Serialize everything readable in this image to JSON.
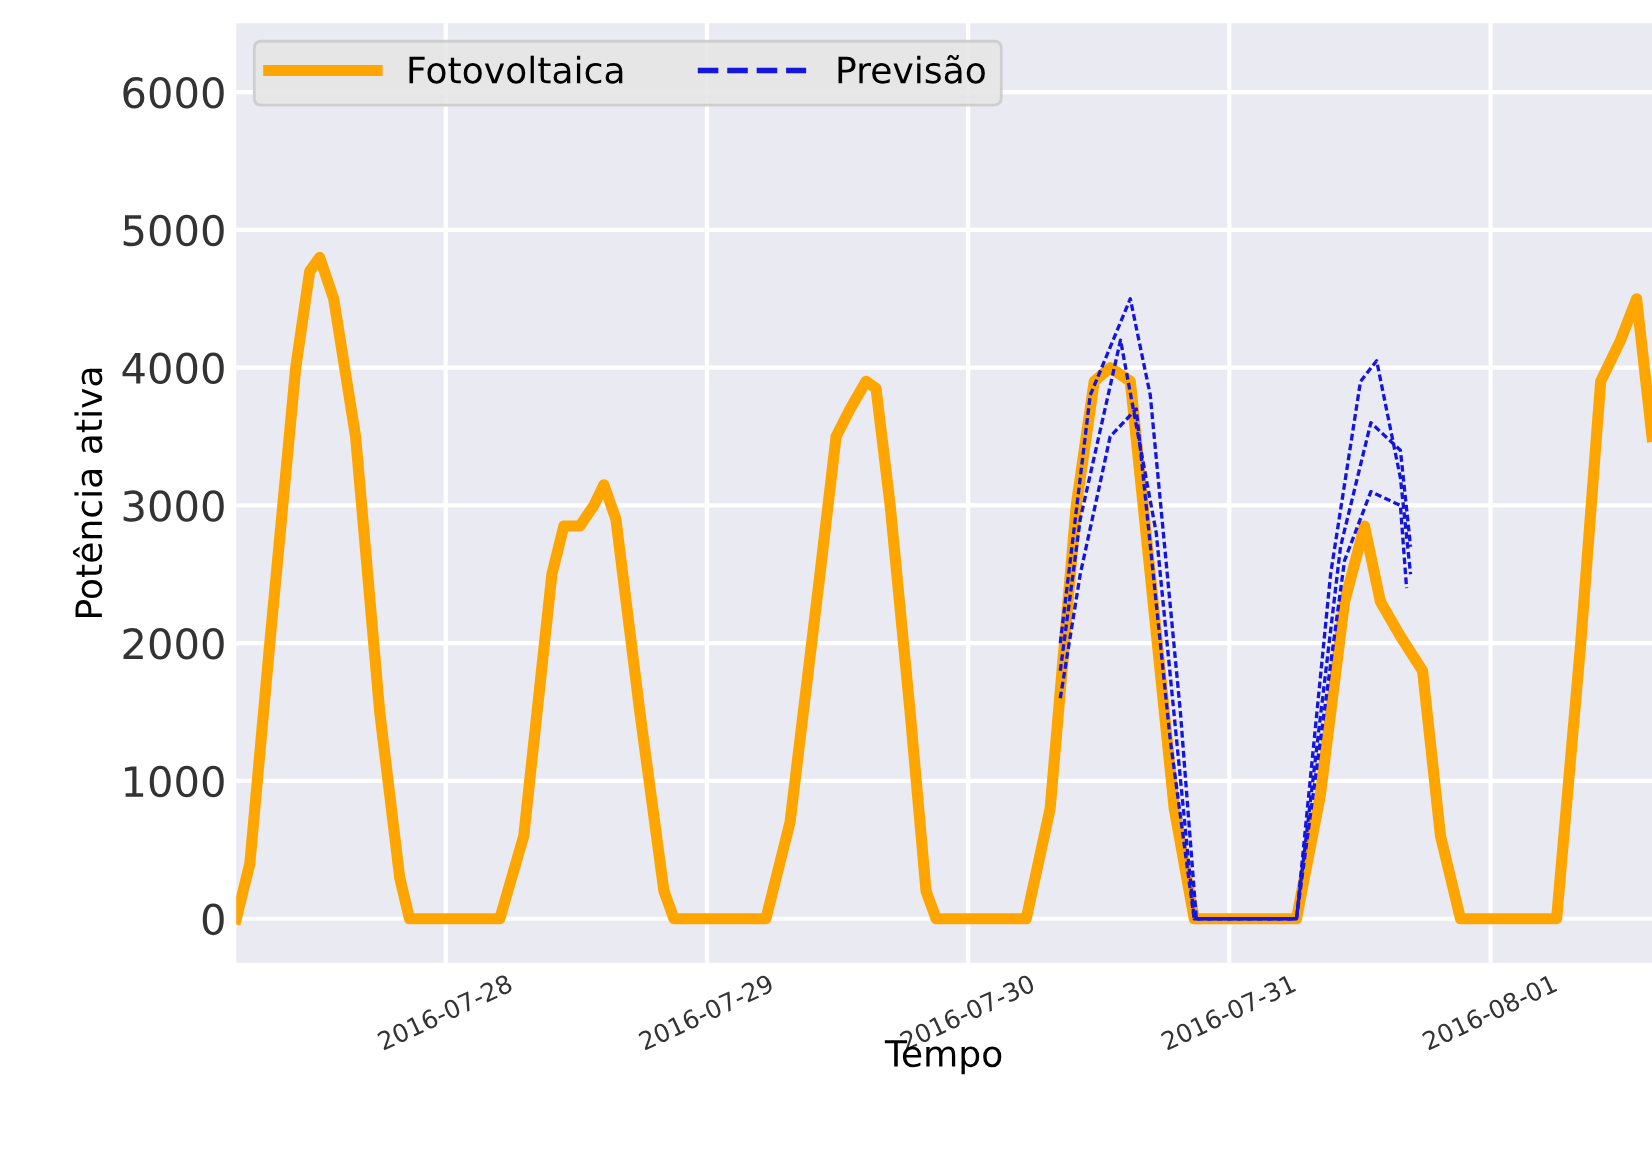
{
  "chart_data": {
    "type": "line",
    "xlabel": "Tempo",
    "ylabel": "Potência ativa",
    "xlim": [
      "2016-07-27T04:45",
      "2016-08-01T14:50"
    ],
    "ylim": [
      -320,
      6500
    ],
    "xticks": [
      "2016-07-28",
      "2016-07-29",
      "2016-07-30",
      "2016-07-31",
      "2016-08-01"
    ],
    "yticks": [
      0,
      1000,
      2000,
      3000,
      4000,
      5000,
      6000
    ],
    "grid": true,
    "legend": "top left",
    "series": [
      {
        "name": "Fotovoltaica",
        "color": "#ffa500",
        "line_style": "solid",
        "x": [
          "2016-07-27T04:45",
          "2016-07-27T06:00",
          "2016-07-27T07:50",
          "2016-07-27T10:13",
          "2016-07-27T11:30",
          "2016-07-27T12:25",
          "2016-07-27T13:42",
          "2016-07-27T15:43",
          "2016-07-27T17:56",
          "2016-07-27T19:46",
          "2016-07-27T20:40",
          "2016-07-28T04:58",
          "2016-07-28T07:10",
          "2016-07-28T09:45",
          "2016-07-28T10:51",
          "2016-07-28T12:19",
          "2016-07-28T13:37",
          "2016-07-28T14:32",
          "2016-07-28T15:38",
          "2016-07-28T17:50",
          "2016-07-28T20:03",
          "2016-07-28T20:58",
          "2016-07-29T05:25",
          "2016-07-29T07:38",
          "2016-07-29T10:23",
          "2016-07-29T11:52",
          "2016-07-29T13:09",
          "2016-07-29T14:37",
          "2016-07-29T15:32",
          "2016-07-29T16:50",
          "2016-07-29T18:40",
          "2016-07-29T20:08",
          "2016-07-29T21:03",
          "2016-07-30T05:20",
          "2016-07-30T07:32",
          "2016-07-30T09:56",
          "2016-07-30T11:35",
          "2016-07-30T13:03",
          "2016-07-30T14:54",
          "2016-07-30T16:44",
          "2016-07-30T18:56",
          "2016-07-30T20:46",
          "2016-07-31T06:10",
          "2016-07-31T08:22",
          "2016-07-31T10:35",
          "2016-07-31T12:25",
          "2016-07-31T13:53",
          "2016-07-31T15:43",
          "2016-07-31T17:45",
          "2016-07-31T19:24",
          "2016-07-31T21:14",
          "2016-08-01T06:04",
          "2016-08-01T08:17",
          "2016-08-01T10:07",
          "2016-08-01T11:57",
          "2016-08-01T13:25",
          "2016-08-01T14:50"
        ],
        "values": [
          0,
          400,
          2000,
          4000,
          4700,
          4800,
          4500,
          3500,
          1500,
          300,
          0,
          0,
          600,
          2500,
          2850,
          2850,
          3000,
          3150,
          2900,
          1500,
          200,
          0,
          0,
          700,
          2500,
          3500,
          3700,
          3900,
          3850,
          3000,
          1500,
          200,
          0,
          0,
          800,
          3000,
          3900,
          4000,
          3900,
          2500,
          800,
          0,
          0,
          900,
          2300,
          2850,
          2300,
          2050,
          1800,
          600,
          0,
          0,
          2000,
          3900,
          4200,
          4500,
          3500
        ]
      },
      {
        "name": "Previsão",
        "color": "#1515e0",
        "line_style": "dashed",
        "x": [
          "2016-07-30T08:28",
          "2016-07-30T11:13",
          "2016-07-30T14:54",
          "2016-07-30T16:44",
          "2016-07-30T19:30",
          "2016-07-30T20:58",
          "2016-07-31T06:10",
          "2016-07-31T09:18",
          "2016-07-31T12:03",
          "2016-07-31T13:32",
          "2016-07-31T15:43",
          "2016-07-31T16:39"
        ],
        "values": [
          2000,
          3800,
          4500,
          3800,
          1500,
          0,
          0,
          2500,
          3900,
          4050,
          3200,
          2500
        ]
      },
      {
        "color": "#1515e0",
        "line_style": "dashed",
        "x": [
          "2016-07-30T08:28",
          "2016-07-30T10:18",
          "2016-07-30T14:00",
          "2016-07-30T17:17",
          "2016-07-30T20:46",
          "2016-07-31T06:10",
          "2016-07-31T10:13",
          "2016-07-31T13:00",
          "2016-07-31T15:43",
          "2016-07-31T16:39"
        ],
        "values": [
          1800,
          2900,
          4200,
          2800,
          0,
          0,
          2700,
          3600,
          3400,
          2700
        ]
      },
      {
        "color": "#1515e0",
        "line_style": "dashed",
        "x": [
          "2016-07-30T08:28",
          "2016-07-30T10:18",
          "2016-07-30T13:03",
          "2016-07-30T15:27",
          "2016-07-30T18:34",
          "2016-07-30T20:46",
          "2016-07-31T06:10",
          "2016-07-31T10:35",
          "2016-07-31T13:00",
          "2016-07-31T15:43",
          "2016-07-31T16:17"
        ],
        "values": [
          1600,
          2500,
          3500,
          3700,
          1300,
          0,
          0,
          2600,
          3100,
          3000,
          2400
        ]
      }
    ]
  }
}
